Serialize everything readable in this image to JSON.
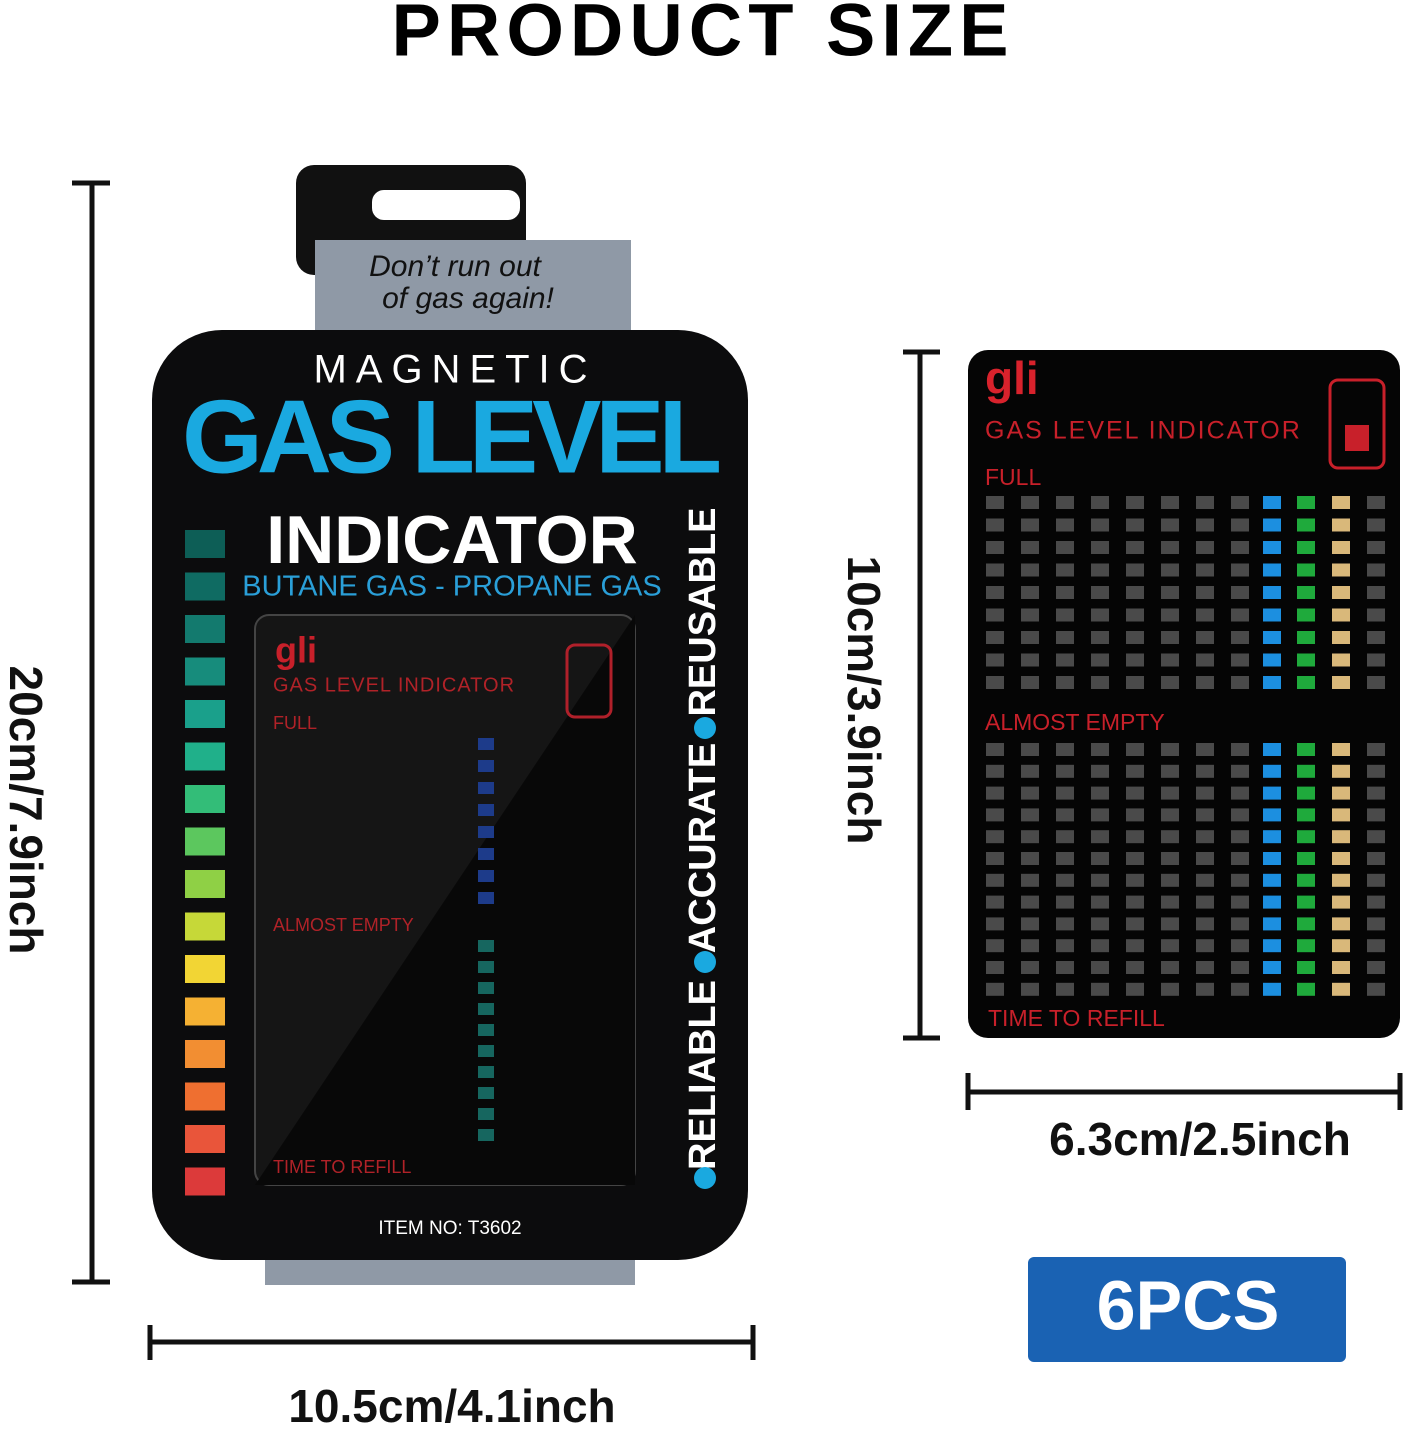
{
  "header": {
    "title": "PRODUCT SIZE"
  },
  "package": {
    "tagline": [
      "Don’t run out",
      "of gas again!"
    ],
    "brand_line": "MAGNETIC",
    "headline": "GAS LEVEL",
    "subhead": "INDICATOR",
    "gas_types": "BUTANE GAS - PROPANE GAS",
    "features": [
      "RELIABLE",
      "ACCURATE",
      "REUSABLE"
    ],
    "item_no": "ITEM NO: T3602",
    "card": {
      "logo": "gli",
      "title": "GAS LEVEL INDICATOR",
      "full": "FULL",
      "almost_empty": "ALMOST EMPTY",
      "refill": "TIME TO REFILL"
    }
  },
  "dimensions": {
    "package_height": "20cm/7.9inch",
    "package_width": "10.5cm/4.1inch",
    "card_height": "10cm/3.9inch",
    "card_width": "6.3cm/2.5inch"
  },
  "badge": "6PCS",
  "card": {
    "logo": "gli",
    "title": "GAS LEVEL INDICATOR",
    "full": "FULL",
    "almost_empty": "ALMOST EMPTY",
    "refill": "TIME TO REFILL"
  }
}
